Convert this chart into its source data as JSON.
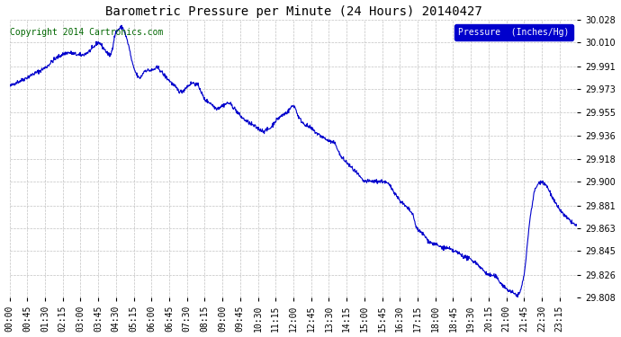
{
  "title": "Barometric Pressure per Minute (24 Hours) 20140427",
  "copyright": "Copyright 2014 Cartronics.com",
  "legend_label": "Pressure  (Inches/Hg)",
  "line_color": "#0000cc",
  "legend_bg": "#0000cc",
  "legend_text_color": "#ffffff",
  "bg_color": "#ffffff",
  "grid_color": "#bbbbbb",
  "ylim": [
    29.808,
    30.028
  ],
  "yticks": [
    29.808,
    29.826,
    29.845,
    29.863,
    29.881,
    29.9,
    29.918,
    29.936,
    29.955,
    29.973,
    29.991,
    30.01,
    30.028
  ],
  "x_tick_labels": [
    "00:00",
    "00:45",
    "01:30",
    "02:15",
    "03:00",
    "03:45",
    "04:30",
    "05:15",
    "06:00",
    "06:45",
    "07:30",
    "08:15",
    "09:00",
    "09:45",
    "10:30",
    "11:15",
    "12:00",
    "12:45",
    "13:30",
    "14:15",
    "15:00",
    "15:45",
    "16:30",
    "17:15",
    "18:00",
    "18:45",
    "19:30",
    "20:15",
    "21:00",
    "21:45",
    "22:30",
    "23:15"
  ],
  "ctrl_x": [
    0,
    15,
    30,
    60,
    90,
    120,
    150,
    180,
    210,
    225,
    240,
    255,
    270,
    285,
    300,
    315,
    330,
    345,
    360,
    375,
    390,
    405,
    420,
    435,
    450,
    465,
    480,
    495,
    510,
    525,
    540,
    555,
    570,
    585,
    600,
    615,
    630,
    645,
    660,
    675,
    690,
    705,
    720,
    735,
    750,
    765,
    780,
    795,
    810,
    825,
    840,
    855,
    870,
    885,
    900,
    915,
    930,
    945,
    960,
    975,
    990,
    1005,
    1020,
    1035,
    1050,
    1065,
    1080,
    1095,
    1110,
    1125,
    1140,
    1155,
    1170,
    1185,
    1200,
    1215,
    1230,
    1245,
    1260,
    1275,
    1290,
    1305,
    1320,
    1335,
    1350,
    1365,
    1380,
    1395,
    1410,
    1425,
    1440
  ],
  "ctrl_y": [
    29.975,
    29.978,
    29.98,
    29.985,
    29.99,
    29.998,
    30.002,
    30.0,
    30.005,
    30.01,
    30.005,
    30.0,
    30.018,
    30.022,
    30.01,
    29.99,
    29.982,
    29.988,
    29.988,
    29.99,
    29.985,
    29.98,
    29.975,
    29.971,
    29.975,
    29.978,
    29.975,
    29.965,
    29.962,
    29.958,
    29.96,
    29.962,
    29.958,
    29.952,
    29.948,
    29.945,
    29.942,
    29.94,
    29.942,
    29.948,
    29.952,
    29.955,
    29.96,
    29.95,
    29.945,
    29.942,
    29.938,
    29.935,
    29.932,
    29.93,
    29.92,
    29.915,
    29.91,
    29.905,
    29.9,
    29.9,
    29.9,
    29.9,
    29.898,
    29.892,
    29.885,
    29.88,
    29.875,
    29.862,
    29.858,
    29.852,
    29.85,
    29.848,
    29.847,
    29.845,
    29.843,
    29.84,
    29.838,
    29.835,
    29.83,
    29.826,
    29.825,
    29.82,
    29.815,
    29.812,
    29.81,
    29.826,
    29.87,
    29.895,
    29.9,
    29.895,
    29.885,
    29.878,
    29.872,
    29.868,
    29.864
  ]
}
